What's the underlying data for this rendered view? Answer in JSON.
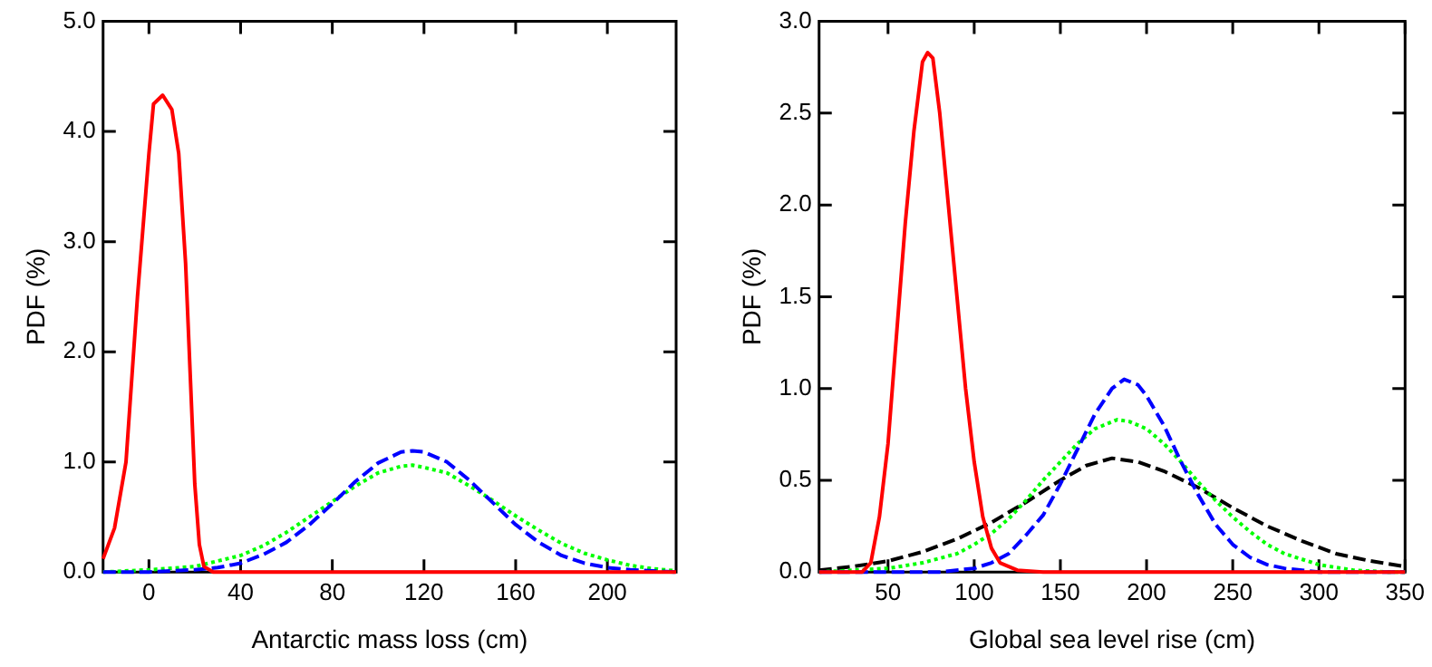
{
  "chart_data": [
    {
      "type": "line",
      "xlabel": "Antarctic mass loss (cm)",
      "ylabel": "PDF (%)",
      "xlim": [
        -20,
        230
      ],
      "xticks": [
        0,
        40,
        80,
        120,
        160,
        200
      ],
      "ylim": [
        0,
        5
      ],
      "yticks": [
        {
          "value": 0,
          "label": "0.0"
        },
        {
          "value": 1,
          "label": "1.0"
        },
        {
          "value": 2,
          "label": "2.0"
        },
        {
          "value": 3,
          "label": "3.0"
        },
        {
          "value": 4,
          "label": "4.0"
        },
        {
          "value": 5,
          "label": "5.0"
        }
      ],
      "grid": false,
      "legend": false,
      "marker": "none",
      "series": [
        {
          "color": "#ff0000",
          "line_style": "solid",
          "x": [
            -20,
            -15,
            -10,
            -5,
            0,
            2,
            6,
            10,
            13,
            16,
            18,
            20,
            22,
            24,
            28,
            230
          ],
          "values": [
            0.12,
            0.4,
            1.0,
            2.5,
            3.8,
            4.25,
            4.33,
            4.2,
            3.8,
            2.8,
            1.8,
            0.8,
            0.25,
            0.05,
            0,
            0
          ]
        },
        {
          "color": "#0000ff",
          "line_style": "dashed",
          "x": [
            -20,
            0,
            20,
            30,
            40,
            50,
            60,
            70,
            80,
            90,
            100,
            110,
            115,
            120,
            130,
            140,
            150,
            160,
            170,
            180,
            190,
            200,
            210,
            220,
            230
          ],
          "values": [
            0,
            0,
            0.02,
            0.04,
            0.08,
            0.16,
            0.27,
            0.43,
            0.62,
            0.82,
            0.99,
            1.09,
            1.1,
            1.09,
            1.0,
            0.83,
            0.63,
            0.43,
            0.27,
            0.15,
            0.08,
            0.04,
            0.02,
            0.01,
            0
          ]
        },
        {
          "color": "#00ff00",
          "line_style": "dotted",
          "x": [
            -20,
            0,
            20,
            40,
            50,
            60,
            70,
            80,
            90,
            100,
            110,
            115,
            120,
            130,
            140,
            150,
            160,
            170,
            180,
            190,
            200,
            210,
            220,
            230
          ],
          "values": [
            0,
            0.02,
            0.05,
            0.15,
            0.24,
            0.36,
            0.5,
            0.64,
            0.78,
            0.9,
            0.96,
            0.97,
            0.95,
            0.9,
            0.78,
            0.65,
            0.51,
            0.38,
            0.26,
            0.17,
            0.11,
            0.06,
            0.03,
            0.01
          ]
        }
      ]
    },
    {
      "type": "line",
      "xlabel": "Global sea level rise (cm)",
      "ylabel": "PDF (%)",
      "xlim": [
        10,
        350
      ],
      "xticks": [
        50,
        100,
        150,
        200,
        250,
        300,
        350
      ],
      "ylim": [
        0,
        3
      ],
      "yticks": [
        {
          "value": 0,
          "label": "0.0"
        },
        {
          "value": 0.5,
          "label": "0.5"
        },
        {
          "value": 1,
          "label": "1.0"
        },
        {
          "value": 1.5,
          "label": "1.5"
        },
        {
          "value": 2,
          "label": "2.0"
        },
        {
          "value": 2.5,
          "label": "2.5"
        },
        {
          "value": 3,
          "label": "3.0"
        }
      ],
      "grid": false,
      "legend": false,
      "marker": "none",
      "series": [
        {
          "color": "#ff0000",
          "line_style": "solid",
          "x": [
            10,
            35,
            40,
            45,
            50,
            55,
            60,
            65,
            70,
            73,
            76,
            80,
            85,
            90,
            95,
            100,
            105,
            110,
            115,
            125,
            140,
            350
          ],
          "values": [
            0,
            0,
            0.05,
            0.3,
            0.7,
            1.3,
            1.9,
            2.4,
            2.78,
            2.83,
            2.8,
            2.5,
            2.0,
            1.5,
            1.0,
            0.6,
            0.3,
            0.13,
            0.05,
            0.01,
            0,
            0
          ]
        },
        {
          "color": "#0000ff",
          "line_style": "dashed",
          "x": [
            10,
            80,
            100,
            110,
            120,
            130,
            140,
            150,
            160,
            170,
            180,
            187,
            195,
            200,
            210,
            220,
            230,
            240,
            250,
            260,
            270,
            280,
            300,
            350
          ],
          "values": [
            0,
            0,
            0.02,
            0.05,
            0.1,
            0.2,
            0.31,
            0.48,
            0.67,
            0.86,
            1.0,
            1.05,
            1.02,
            0.96,
            0.8,
            0.6,
            0.42,
            0.26,
            0.15,
            0.08,
            0.04,
            0.02,
            0,
            0
          ]
        },
        {
          "color": "#00ff00",
          "line_style": "dotted",
          "x": [
            10,
            30,
            50,
            70,
            90,
            100,
            110,
            120,
            130,
            140,
            150,
            160,
            170,
            183,
            190,
            200,
            210,
            220,
            230,
            240,
            250,
            260,
            270,
            280,
            290,
            300,
            320,
            340,
            350
          ],
          "values": [
            0,
            0.01,
            0.02,
            0.05,
            0.1,
            0.15,
            0.21,
            0.29,
            0.39,
            0.5,
            0.6,
            0.7,
            0.78,
            0.83,
            0.82,
            0.78,
            0.7,
            0.6,
            0.49,
            0.39,
            0.3,
            0.22,
            0.15,
            0.1,
            0.07,
            0.04,
            0.01,
            0,
            0
          ]
        },
        {
          "color": "#000000",
          "line_style": "dashed",
          "x": [
            10,
            30,
            50,
            70,
            90,
            110,
            130,
            150,
            165,
            180,
            195,
            210,
            230,
            250,
            270,
            290,
            310,
            330,
            350
          ],
          "values": [
            0.01,
            0.03,
            0.06,
            0.11,
            0.18,
            0.27,
            0.38,
            0.5,
            0.58,
            0.62,
            0.6,
            0.55,
            0.46,
            0.35,
            0.25,
            0.17,
            0.1,
            0.06,
            0.03
          ]
        }
      ]
    }
  ]
}
